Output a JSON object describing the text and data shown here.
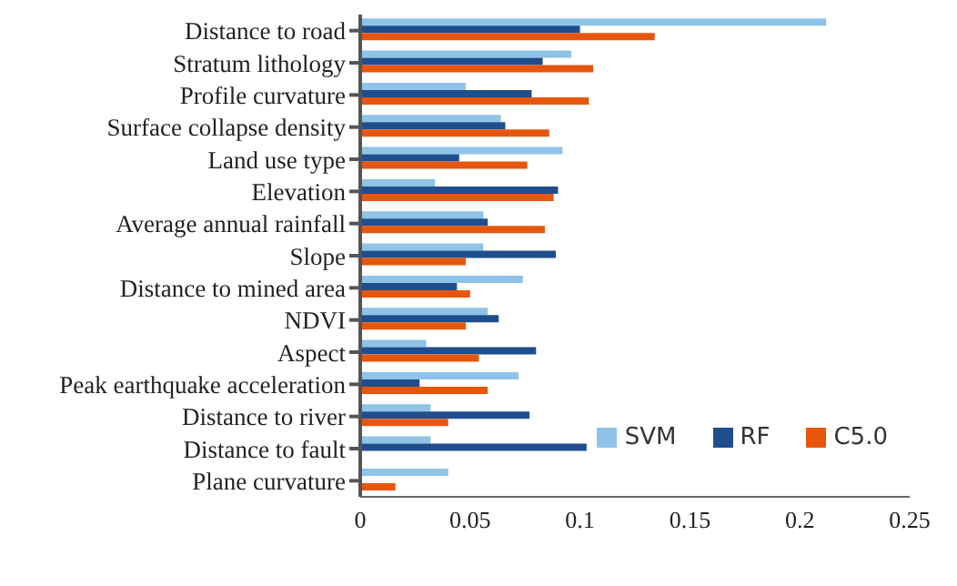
{
  "chart_data": {
    "type": "bar",
    "orientation": "horizontal",
    "categories": [
      "Distance to road",
      "Stratum lithology",
      "Profile curvature",
      "Surface collapse density",
      "Land use type",
      "Elevation",
      "Average annual rainfall",
      "Slope",
      "Distance to mined area",
      "NDVI",
      "Aspect",
      "Peak earthquake acceleration",
      "Distance to river",
      "Distance to fault",
      "Plane curvature"
    ],
    "series": [
      {
        "name": "SVM",
        "color": "#8fc3e8",
        "values": [
          0.212,
          0.096,
          0.048,
          0.064,
          0.092,
          0.034,
          0.056,
          0.056,
          0.074,
          0.058,
          0.03,
          0.072,
          0.032,
          0.032,
          0.04
        ]
      },
      {
        "name": "RF",
        "color": "#1f4e8c",
        "values": [
          0.1,
          0.083,
          0.078,
          0.066,
          0.045,
          0.09,
          0.058,
          0.089,
          0.044,
          0.063,
          0.08,
          0.027,
          0.077,
          0.103,
          null
        ]
      },
      {
        "name": "C5.0",
        "color": "#e8560c",
        "values": [
          0.134,
          0.106,
          0.104,
          0.086,
          0.076,
          0.088,
          0.084,
          0.048,
          0.05,
          0.048,
          0.054,
          0.058,
          0.04,
          null,
          0.016
        ]
      }
    ],
    "xlim": [
      0,
      0.25
    ],
    "xticks": [
      0,
      0.05,
      0.1,
      0.15,
      0.2,
      0.25
    ],
    "grid": false,
    "legend": "bottom right"
  }
}
